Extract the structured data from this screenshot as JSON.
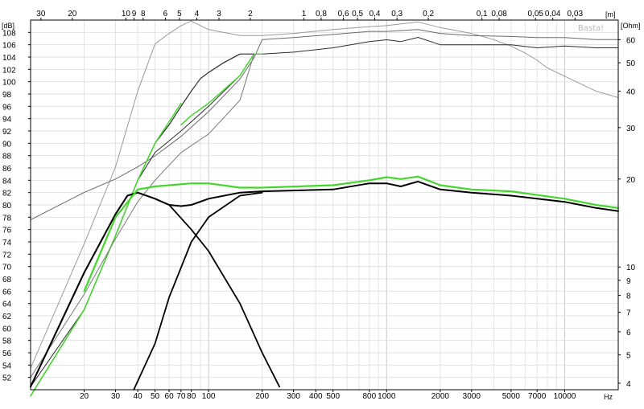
{
  "chart_data": {
    "type": "line",
    "title": "",
    "watermark": "Basta!",
    "x_axis": {
      "scale": "log",
      "unit": "Hz",
      "range": [
        10,
        20000
      ],
      "tick_labels": [
        {
          "v": 20,
          "t": "20"
        },
        {
          "v": 30,
          "t": "30"
        },
        {
          "v": 40,
          "t": "40"
        },
        {
          "v": 50,
          "t": "50"
        },
        {
          "v": 60,
          "t": "60"
        },
        {
          "v": 70,
          "t": "70"
        },
        {
          "v": 80,
          "t": "80"
        },
        {
          "v": 100,
          "t": "100"
        },
        {
          "v": 200,
          "t": "200"
        },
        {
          "v": 300,
          "t": "300"
        },
        {
          "v": 400,
          "t": "400"
        },
        {
          "v": 500,
          "t": "500"
        },
        {
          "v": 800,
          "t": "800"
        },
        {
          "v": 1000,
          "t": "1000"
        },
        {
          "v": 2000,
          "t": "2000"
        },
        {
          "v": 3000,
          "t": "3000"
        },
        {
          "v": 5000,
          "t": "5000"
        },
        {
          "v": 7000,
          "t": "7000"
        },
        {
          "v": 10000,
          "t": "10000"
        }
      ]
    },
    "top_axis": {
      "unit": "[m]",
      "tick_labels": [
        {
          "v": 30,
          "t": "30"
        },
        {
          "v": 20,
          "t": "20"
        },
        {
          "v": 10,
          "t": "10"
        },
        {
          "v": 9,
          "t": "9"
        },
        {
          "v": 8,
          "t": "8"
        },
        {
          "v": 6,
          "t": "6"
        },
        {
          "v": 5,
          "t": "5"
        },
        {
          "v": 4,
          "t": "4"
        },
        {
          "v": 3,
          "t": "3"
        },
        {
          "v": 2,
          "t": "2"
        },
        {
          "v": 1,
          "t": "1"
        },
        {
          "v": 0.8,
          "t": "0,8"
        },
        {
          "v": 0.6,
          "t": "0,6"
        },
        {
          "v": 0.5,
          "t": "0,5"
        },
        {
          "v": 0.4,
          "t": "0,4"
        },
        {
          "v": 0.3,
          "t": "0,3"
        },
        {
          "v": 0.2,
          "t": "0,2"
        },
        {
          "v": 0.1,
          "t": "0,1"
        },
        {
          "v": 0.08,
          "t": "0,08"
        },
        {
          "v": 0.05,
          "t": "0,05"
        },
        {
          "v": 0.04,
          "t": "0,04"
        },
        {
          "v": 0.03,
          "t": "0,03"
        }
      ]
    },
    "y_left": {
      "unit": "[dB]",
      "range": [
        50,
        110
      ],
      "ticks": [
        52,
        54,
        56,
        58,
        60,
        62,
        64,
        66,
        68,
        70,
        72,
        74,
        76,
        78,
        80,
        82,
        84,
        86,
        88,
        90,
        92,
        94,
        96,
        98,
        100,
        102,
        104,
        106,
        108
      ],
      "gray_ticks": [
        60,
        62,
        64,
        66,
        68
      ]
    },
    "y_right": {
      "unit": "[Ohm]",
      "scale": "log",
      "range": [
        3.8,
        70
      ],
      "tick_labels": [
        {
          "v": 4,
          "t": "4"
        },
        {
          "v": 5,
          "t": "5"
        },
        {
          "v": 6,
          "t": "6"
        },
        {
          "v": 7,
          "t": "7"
        },
        {
          "v": 8,
          "t": "8"
        },
        {
          "v": 9,
          "t": "9"
        },
        {
          "v": 10,
          "t": "10"
        },
        {
          "v": 20,
          "t": "20"
        },
        {
          "v": 30,
          "t": "30"
        },
        {
          "v": 40,
          "t": "40"
        },
        {
          "v": 50,
          "t": "50"
        },
        {
          "v": 60,
          "t": "60"
        }
      ]
    },
    "grid": true,
    "legend": "none",
    "series": [
      {
        "color": "#9a9a9a",
        "axis": "ohm",
        "width": 1,
        "points": [
          [
            10,
            4.5
          ],
          [
            20,
            12
          ],
          [
            30,
            22
          ],
          [
            40,
            40
          ],
          [
            50,
            58
          ],
          [
            60,
            63
          ],
          [
            70,
            67
          ],
          [
            80,
            69.5
          ],
          [
            90,
            67
          ],
          [
            100,
            65
          ],
          [
            150,
            62
          ],
          [
            200,
            62
          ],
          [
            300,
            63
          ],
          [
            500,
            65
          ],
          [
            800,
            66.5
          ],
          [
            1000,
            67
          ],
          [
            1500,
            69
          ],
          [
            2000,
            66
          ],
          [
            3000,
            63
          ],
          [
            4000,
            60
          ],
          [
            5000,
            57
          ],
          [
            6000,
            54
          ],
          [
            7000,
            51
          ],
          [
            8000,
            48
          ],
          [
            10000,
            45
          ],
          [
            15000,
            40
          ],
          [
            20000,
            38
          ]
        ]
      },
      {
        "color": "#6a6a6a",
        "axis": "ohm",
        "width": 1,
        "points": [
          [
            10,
            14.5
          ],
          [
            20,
            18
          ],
          [
            30,
            20
          ],
          [
            40,
            22
          ],
          [
            50,
            24
          ],
          [
            70,
            28
          ],
          [
            100,
            34
          ],
          [
            150,
            44
          ],
          [
            180,
            52
          ],
          [
            200,
            60
          ],
          [
            300,
            61
          ],
          [
            500,
            62.5
          ],
          [
            800,
            64
          ],
          [
            1000,
            64
          ],
          [
            1500,
            65
          ],
          [
            2000,
            63
          ],
          [
            3000,
            62
          ],
          [
            5000,
            61.5
          ],
          [
            7000,
            61
          ],
          [
            10000,
            61
          ],
          [
            15000,
            60
          ],
          [
            20000,
            60
          ]
        ]
      },
      {
        "color": "#2e2e2e",
        "axis": "db",
        "width": 1,
        "points": [
          [
            10,
            50.5
          ],
          [
            20,
            63
          ],
          [
            30,
            75
          ],
          [
            40,
            84
          ],
          [
            50,
            88.5
          ],
          [
            70,
            92
          ],
          [
            100,
            96
          ],
          [
            150,
            101
          ],
          [
            180,
            104.5
          ],
          [
            200,
            104.5
          ],
          [
            300,
            104.8
          ],
          [
            500,
            105.5
          ],
          [
            800,
            106.5
          ],
          [
            1000,
            106.8
          ],
          [
            1200,
            106.5
          ],
          [
            1500,
            107.2
          ],
          [
            2000,
            106
          ],
          [
            3000,
            106
          ],
          [
            5000,
            106
          ],
          [
            7000,
            105.5
          ],
          [
            10000,
            105.8
          ],
          [
            15000,
            105.5
          ],
          [
            20000,
            105.5
          ]
        ]
      },
      {
        "color": "#44d62c",
        "axis": "db",
        "width": 1.5,
        "points": [
          [
            70,
            93
          ],
          [
            80,
            94.5
          ],
          [
            100,
            96.5
          ],
          [
            150,
            101
          ],
          [
            180,
            104.5
          ],
          [
            200,
            104.5
          ]
        ]
      },
      {
        "color": "#2a2a2a",
        "axis": "db",
        "width": 1.2,
        "points": [
          [
            10,
            49
          ],
          [
            20,
            63
          ],
          [
            30,
            75
          ],
          [
            40,
            84
          ],
          [
            50,
            90
          ],
          [
            60,
            93
          ],
          [
            70,
            96
          ],
          [
            80,
            98.5
          ],
          [
            90,
            100.5
          ],
          [
            100,
            101.5
          ],
          [
            120,
            103
          ],
          [
            150,
            104.5
          ],
          [
            180,
            104.5
          ]
        ]
      },
      {
        "color": "#44d62c",
        "axis": "db",
        "width": 1.5,
        "points": [
          [
            10,
            49
          ],
          [
            20,
            63
          ],
          [
            30,
            75
          ],
          [
            40,
            84
          ],
          [
            50,
            90
          ],
          [
            60,
            93.5
          ],
          [
            70,
            96.5
          ]
        ]
      },
      {
        "color": "#7a7a7a",
        "axis": "db",
        "width": 1,
        "points": [
          [
            10,
            52
          ],
          [
            20,
            65.5
          ],
          [
            30,
            74.5
          ],
          [
            40,
            80.5
          ],
          [
            50,
            84
          ],
          [
            70,
            88.5
          ],
          [
            100,
            91.5
          ],
          [
            150,
            97
          ],
          [
            180,
            104.5
          ]
        ]
      },
      {
        "color": "#000000",
        "axis": "db",
        "width": 2,
        "points": [
          [
            10,
            50.5
          ],
          [
            20,
            69
          ],
          [
            30,
            78.5
          ],
          [
            35,
            81.5
          ],
          [
            40,
            82
          ],
          [
            50,
            81
          ],
          [
            60,
            80
          ],
          [
            70,
            79.8
          ],
          [
            80,
            80
          ],
          [
            100,
            81
          ],
          [
            150,
            82
          ],
          [
            200,
            82.2
          ],
          [
            500,
            82.5
          ],
          [
            800,
            83.5
          ],
          [
            1000,
            83.5
          ],
          [
            1200,
            83
          ],
          [
            1500,
            83.8
          ],
          [
            2000,
            82.5
          ],
          [
            3000,
            82
          ],
          [
            5000,
            81.5
          ],
          [
            7000,
            81
          ],
          [
            10000,
            80.5
          ],
          [
            15000,
            79.5
          ],
          [
            20000,
            79
          ]
        ]
      },
      {
        "color": "#000000",
        "axis": "db",
        "width": 1.8,
        "points": [
          [
            10,
            50.5
          ],
          [
            20,
            69
          ],
          [
            30,
            78.5
          ],
          [
            35,
            81.5
          ],
          [
            40,
            82
          ],
          [
            50,
            81
          ],
          [
            60,
            80
          ],
          [
            80,
            76
          ],
          [
            100,
            72.5
          ],
          [
            150,
            64
          ],
          [
            200,
            56
          ],
          [
            250,
            50.5
          ]
        ]
      },
      {
        "color": "#000000",
        "axis": "db",
        "width": 1.8,
        "points": [
          [
            38,
            50
          ],
          [
            50,
            57.5
          ],
          [
            60,
            65
          ],
          [
            80,
            74
          ],
          [
            100,
            78
          ],
          [
            150,
            81.5
          ],
          [
            200,
            82
          ]
        ]
      },
      {
        "color": "#44d62c",
        "axis": "db",
        "width": 2.2,
        "points": [
          [
            20,
            66
          ],
          [
            30,
            78
          ],
          [
            40,
            82.5
          ],
          [
            50,
            83
          ],
          [
            80,
            83.5
          ],
          [
            100,
            83.5
          ],
          [
            150,
            82.8
          ],
          [
            200,
            82.8
          ],
          [
            500,
            83.2
          ],
          [
            800,
            84
          ],
          [
            1000,
            84.5
          ],
          [
            1200,
            84.2
          ],
          [
            1500,
            84.6
          ],
          [
            2000,
            83.2
          ],
          [
            3000,
            82.5
          ],
          [
            5000,
            82.2
          ],
          [
            7000,
            81.6
          ],
          [
            10000,
            81
          ],
          [
            15000,
            80
          ],
          [
            20000,
            79.5
          ]
        ]
      }
    ]
  }
}
